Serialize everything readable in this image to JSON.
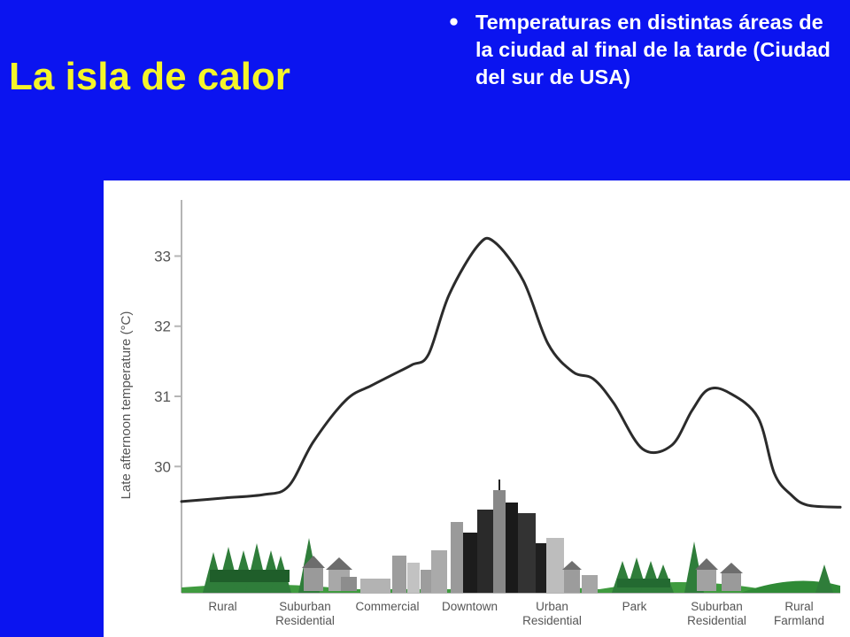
{
  "slide": {
    "title": "La isla de calor",
    "bullet_symbol": "•",
    "bullet_text": "Temperaturas en distintas áreas de la ciudad al final de la tarde (Ciudad del sur de USA)"
  },
  "chart_data": {
    "type": "line",
    "ylabel": "Late afternoon temperature (°C)",
    "xlabel": "",
    "yticks": [
      30,
      31,
      32,
      33
    ],
    "ylim": [
      28.2,
      33.8
    ],
    "grid": false,
    "categories": [
      [
        "Rural"
      ],
      [
        "Suburban",
        "Residential"
      ],
      [
        "Commercial"
      ],
      [
        "Downtown"
      ],
      [
        "Urban",
        "Residential"
      ],
      [
        "Park"
      ],
      [
        "Suburban",
        "Residential"
      ],
      [
        "Rural",
        "Farmland"
      ]
    ],
    "series": [
      {
        "x": [
          0.0,
          0.5,
          1.0,
          1.3,
          1.6,
          2.0,
          2.3,
          2.55,
          2.8,
          3.0,
          3.25,
          3.6,
          3.8,
          4.15,
          4.45,
          4.75,
          5.0,
          5.25,
          5.6,
          5.95,
          6.2,
          6.4,
          6.65,
          7.0,
          7.2,
          7.4,
          7.6,
          8.0
        ],
        "y": [
          29.5,
          29.55,
          29.6,
          29.72,
          30.35,
          30.95,
          31.15,
          31.3,
          31.45,
          31.6,
          32.45,
          33.15,
          33.2,
          32.65,
          31.75,
          31.35,
          31.25,
          30.9,
          30.25,
          30.3,
          30.8,
          31.1,
          31.05,
          30.7,
          29.9,
          29.6,
          29.45,
          29.42
        ]
      }
    ],
    "line_color": "#2b2b2b"
  }
}
